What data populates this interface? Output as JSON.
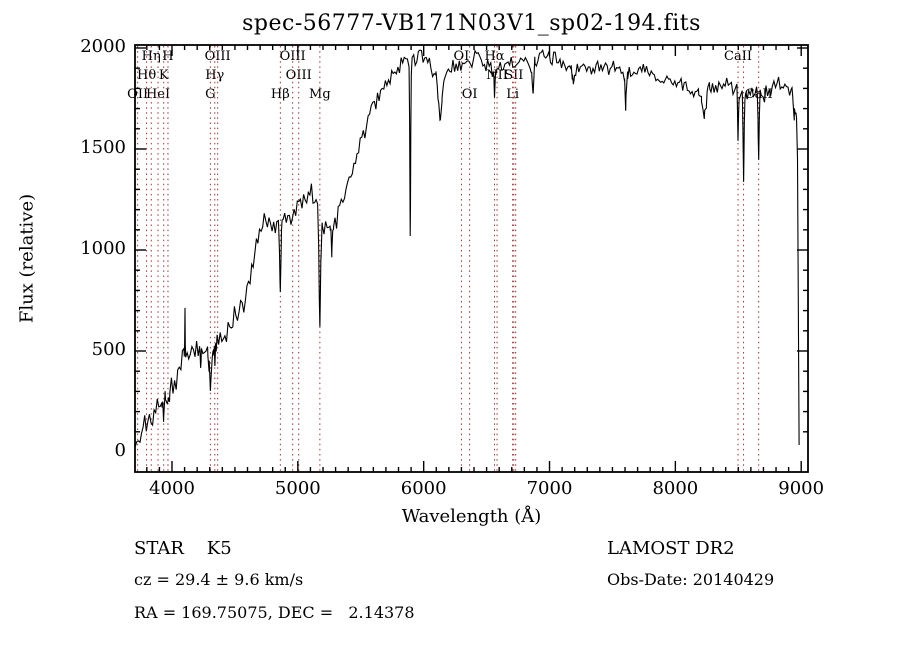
{
  "title": "spec-56777-VB171N03V1_sp02-194.fits",
  "plot": {
    "xlabel": "Wavelength (Å)",
    "ylabel": "Flux (relative)"
  },
  "info": {
    "class_label": "STAR    K5",
    "cz": "cz = 29.4 ± 9.6 km/s",
    "radec": "RA = 169.75075, DEC =   2.14378",
    "survey": "LAMOST DR2",
    "obs_date": "Obs-Date: 20140429"
  },
  "chart_data": {
    "type": "line",
    "title": "spec-56777-VB171N03V1_sp02-194.fits",
    "xlabel": "Wavelength (Å)",
    "ylabel": "Flux (relative)",
    "xlim": [
      3706,
      9056
    ],
    "ylim": [
      -99,
      2015
    ],
    "x_ticks": [
      4000,
      5000,
      6000,
      7000,
      8000,
      9000
    ],
    "y_ticks": [
      0,
      500,
      1000,
      1500,
      2000
    ],
    "x_minor_step": 100,
    "y_minor_step": 100,
    "grid": false,
    "series_color": "#000000",
    "marker_color": "#993333",
    "continuum_points": [
      [
        3706,
        40
      ],
      [
        3730,
        90
      ],
      [
        3760,
        120
      ],
      [
        3800,
        150
      ],
      [
        3840,
        180
      ],
      [
        3880,
        215
      ],
      [
        3920,
        245
      ],
      [
        3960,
        275
      ],
      [
        4000,
        315
      ],
      [
        4040,
        390
      ],
      [
        4090,
        470
      ],
      [
        4130,
        465
      ],
      [
        4180,
        505
      ],
      [
        4240,
        505
      ],
      [
        4290,
        485
      ],
      [
        4330,
        515
      ],
      [
        4380,
        550
      ],
      [
        4440,
        590
      ],
      [
        4500,
        655
      ],
      [
        4560,
        730
      ],
      [
        4610,
        820
      ],
      [
        4650,
        980
      ],
      [
        4690,
        1090
      ],
      [
        4730,
        1140
      ],
      [
        4780,
        1150
      ],
      [
        4830,
        1120
      ],
      [
        4880,
        1140
      ],
      [
        4930,
        1175
      ],
      [
        4990,
        1215
      ],
      [
        5050,
        1250
      ],
      [
        5110,
        1260
      ],
      [
        5160,
        1230
      ],
      [
        5210,
        1090
      ],
      [
        5260,
        1120
      ],
      [
        5310,
        1170
      ],
      [
        5370,
        1270
      ],
      [
        5430,
        1400
      ],
      [
        5490,
        1520
      ],
      [
        5550,
        1630
      ],
      [
        5610,
        1720
      ],
      [
        5670,
        1800
      ],
      [
        5730,
        1850
      ],
      [
        5790,
        1900
      ],
      [
        5860,
        1935
      ],
      [
        5930,
        1935
      ],
      [
        6000,
        1940
      ],
      [
        6060,
        1895
      ],
      [
        6120,
        1860
      ],
      [
        6180,
        1865
      ],
      [
        6240,
        1895
      ],
      [
        6310,
        1910
      ],
      [
        6380,
        1935
      ],
      [
        6440,
        1940
      ],
      [
        6510,
        1905
      ],
      [
        6580,
        1895
      ],
      [
        6650,
        1920
      ],
      [
        6720,
        1935
      ],
      [
        6790,
        1945
      ],
      [
        6860,
        1920
      ],
      [
        6930,
        1945
      ],
      [
        7000,
        1950
      ],
      [
        7080,
        1935
      ],
      [
        7160,
        1910
      ],
      [
        7240,
        1890
      ],
      [
        7320,
        1890
      ],
      [
        7400,
        1910
      ],
      [
        7480,
        1905
      ],
      [
        7560,
        1890
      ],
      [
        7640,
        1885
      ],
      [
        7720,
        1890
      ],
      [
        7800,
        1870
      ],
      [
        7880,
        1840
      ],
      [
        7960,
        1835
      ],
      [
        8040,
        1825
      ],
      [
        8120,
        1795
      ],
      [
        8200,
        1770
      ],
      [
        8280,
        1800
      ],
      [
        8360,
        1825
      ],
      [
        8440,
        1810
      ],
      [
        8520,
        1770
      ],
      [
        8600,
        1780
      ],
      [
        8680,
        1760
      ],
      [
        8760,
        1805
      ],
      [
        8840,
        1830
      ],
      [
        8900,
        1810
      ],
      [
        8940,
        1780
      ],
      [
        8960,
        1720
      ],
      [
        8972,
        1400
      ],
      [
        8979,
        500
      ],
      [
        8983,
        25
      ]
    ],
    "absorption_features": [
      [
        3934,
        90,
        7
      ],
      [
        3968,
        70,
        6
      ],
      [
        4103,
        -200,
        2.5
      ],
      [
        4227,
        110,
        4
      ],
      [
        4305,
        170,
        10
      ],
      [
        4341,
        90,
        5
      ],
      [
        4861,
        380,
        7
      ],
      [
        5175,
        550,
        9
      ],
      [
        5270,
        140,
        7
      ],
      [
        5893,
        900,
        4.5
      ],
      [
        6130,
        240,
        16
      ],
      [
        6563,
        140,
        5
      ],
      [
        6869,
        160,
        8
      ],
      [
        7190,
        60,
        9
      ],
      [
        7605,
        170,
        8
      ],
      [
        8230,
        100,
        22
      ],
      [
        8498,
        250,
        4.5
      ],
      [
        8542,
        430,
        5.5
      ],
      [
        8662,
        330,
        5.5
      ],
      [
        8945,
        90,
        9
      ]
    ],
    "noise_profile": [
      [
        3706,
        62
      ],
      [
        4000,
        58
      ],
      [
        4400,
        55
      ],
      [
        4900,
        55
      ],
      [
        5400,
        52
      ],
      [
        5900,
        45
      ],
      [
        6400,
        38
      ],
      [
        6900,
        35
      ],
      [
        7400,
        31
      ],
      [
        7900,
        30
      ],
      [
        8400,
        33
      ],
      [
        8983,
        38
      ]
    ],
    "line_markers": [
      {
        "label": "OII",
        "wl": 3727,
        "row": 3
      },
      {
        "label": "Hθ",
        "wl": 3798,
        "row": 2
      },
      {
        "label": "Hη",
        "wl": 3835,
        "row": 1
      },
      {
        "label": "HeI",
        "wl": 3889,
        "row": 3
      },
      {
        "label": "K",
        "wl": 3934,
        "row": 2
      },
      {
        "label": "H",
        "wl": 3968,
        "row": 1
      },
      {
        "label": "G",
        "wl": 4305,
        "row": 3
      },
      {
        "label": "Hγ",
        "wl": 4340,
        "row": 2
      },
      {
        "label": "OIII",
        "wl": 4363,
        "row": 1
      },
      {
        "label": "Hβ",
        "wl": 4861,
        "row": 3
      },
      {
        "label": "OIII",
        "wl": 4959,
        "row": 1
      },
      {
        "label": "OIII",
        "wl": 5007,
        "row": 2
      },
      {
        "label": "Mg",
        "wl": 5175,
        "row": 3
      },
      {
        "label": "OI",
        "wl": 6300,
        "row": 1
      },
      {
        "label": "OI",
        "wl": 6365,
        "row": 3
      },
      {
        "label": "Hα",
        "wl": 6563,
        "row": 1
      },
      {
        "label": "NII",
        "wl": 6583,
        "row": 2
      },
      {
        "label": "Li",
        "wl": 6707,
        "row": 3
      },
      {
        "label": "SII",
        "wl": 6716,
        "row": 2
      },
      {
        "label": "",
        "wl": 6731,
        "row": 0
      },
      {
        "label": "CaII",
        "wl": 8498,
        "row": 1
      },
      {
        "label": "",
        "wl": 8542,
        "row": 0
      },
      {
        "label": "CaII",
        "wl": 8662,
        "row": 3
      }
    ]
  }
}
